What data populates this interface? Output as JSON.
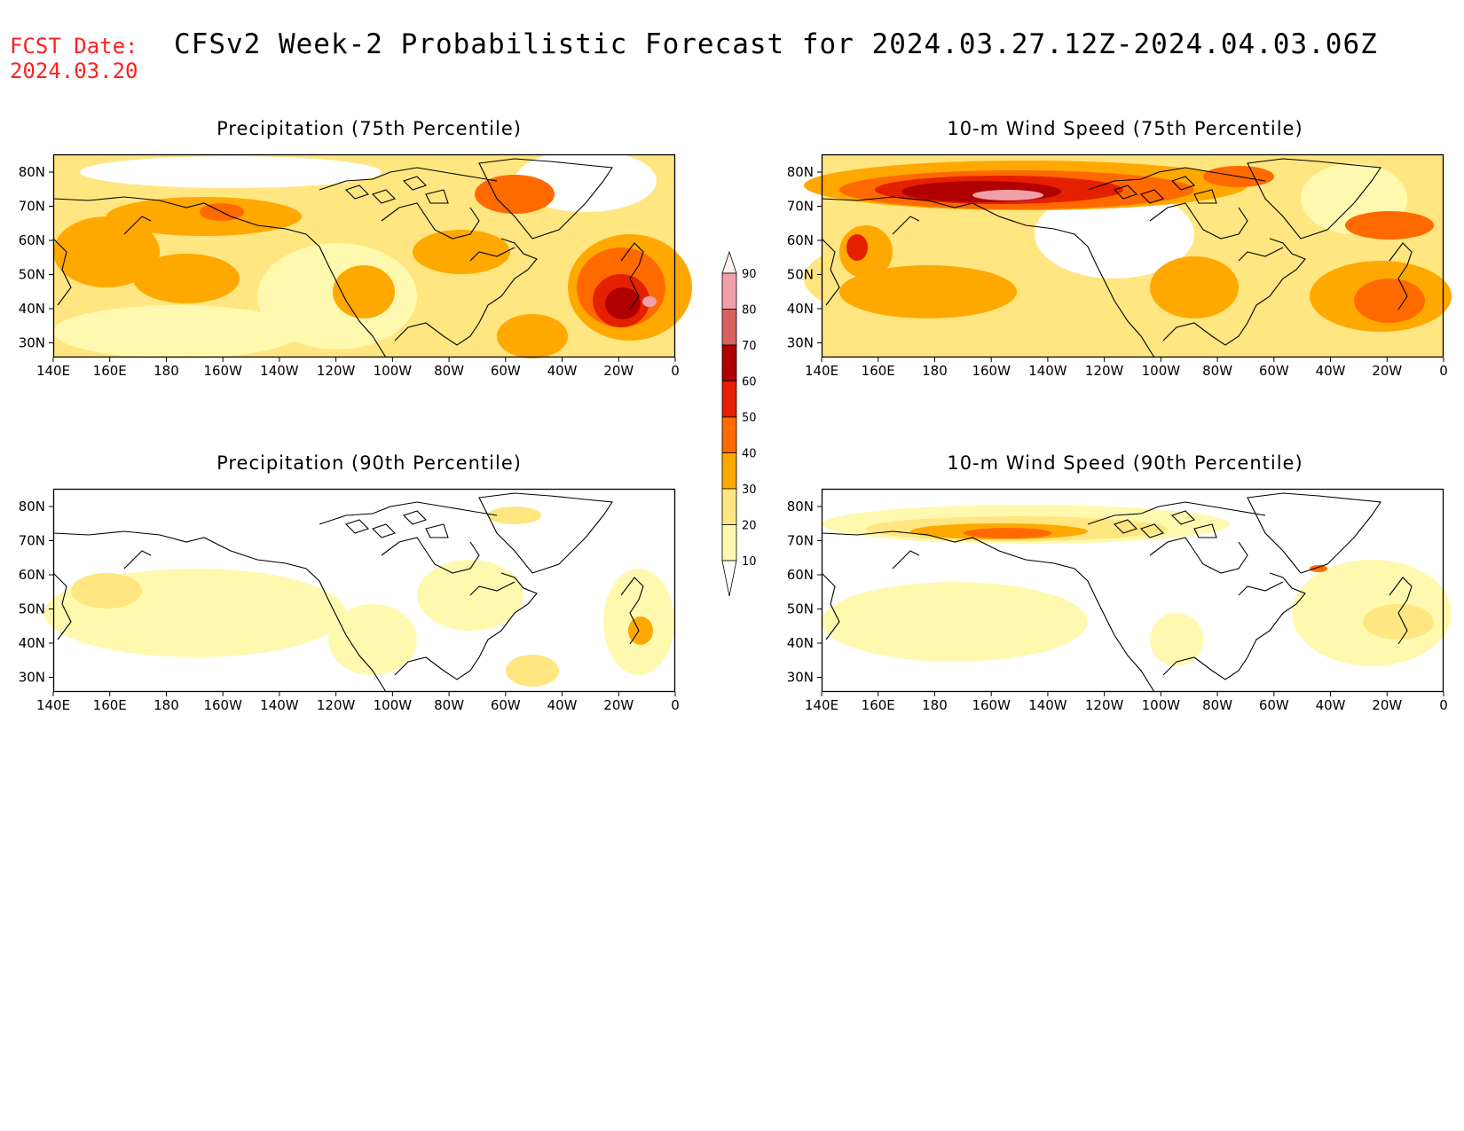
{
  "header": {
    "fcst_label": "FCST Date:",
    "fcst_date": "2024.03.20",
    "title": "CFSv2 Week-2 Probabilistic Forecast for 2024.03.27.12Z-2024.04.03.06Z"
  },
  "panels": [
    {
      "id": "precip-75",
      "title": "Precipitation (75th Percentile)"
    },
    {
      "id": "wind-75",
      "title": "10-m Wind Speed (75th Percentile)"
    },
    {
      "id": "precip-90",
      "title": "Precipitation (90th Percentile)"
    },
    {
      "id": "wind-90",
      "title": "10-m Wind Speed (90th Percentile)"
    }
  ],
  "axes": {
    "lon_labels": [
      "140E",
      "160E",
      "180",
      "160W",
      "140W",
      "120W",
      "100W",
      "80W",
      "60W",
      "40W",
      "20W",
      "0"
    ],
    "lat_labels": [
      "80N",
      "70N",
      "60N",
      "50N",
      "40N",
      "30N"
    ]
  },
  "colorbar": {
    "levels": [
      "10",
      "20",
      "30",
      "40",
      "50",
      "60",
      "70",
      "80",
      "90"
    ],
    "colors": [
      "#fff9b0",
      "#ffe680",
      "#ffa800",
      "#ff6a00",
      "#e42000",
      "#b00000",
      "#d86060",
      "#f0a0a8",
      "#fff0f0"
    ]
  }
}
